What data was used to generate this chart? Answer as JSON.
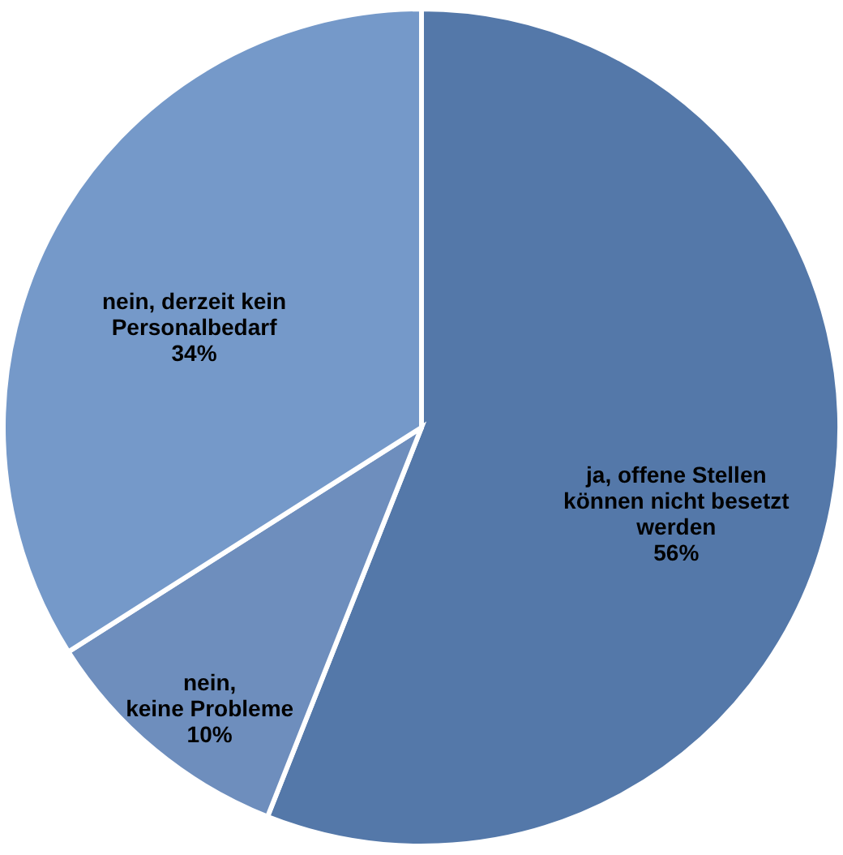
{
  "chart_data": {
    "type": "pie",
    "categories": [
      "ja, offene Stellen\nkönnen nicht besetzt\nwerden",
      "nein,\nkeine Probleme",
      "nein, derzeit kein\nPersonalbedarf"
    ],
    "values": [
      56,
      10,
      34
    ],
    "value_labels": [
      "56%",
      "10%",
      "34%"
    ],
    "colors": [
      "#5478a9",
      "#6e8ebd",
      "#7599c9"
    ]
  }
}
